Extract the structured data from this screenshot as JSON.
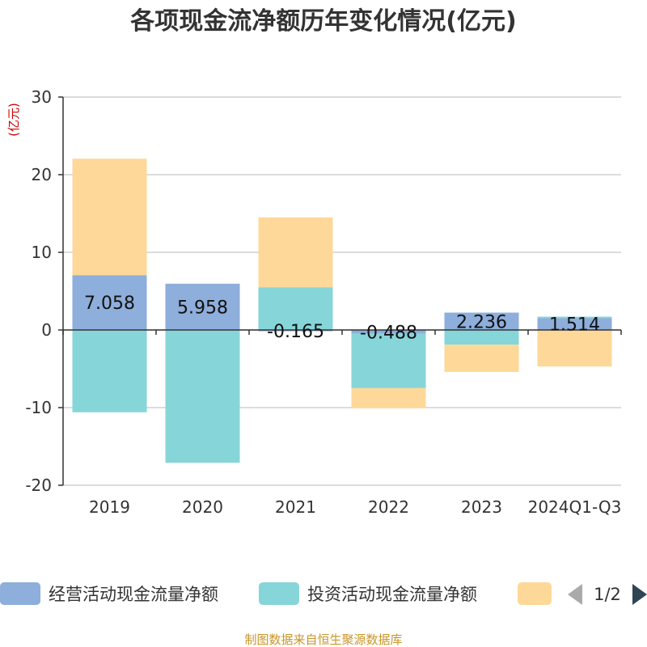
{
  "chart_data": {
    "type": "bar",
    "stacked": true,
    "title": "各项现金流净额历年变化情况(亿元)",
    "unit_label": "(亿元)",
    "categories": [
      "2019",
      "2020",
      "2021",
      "2022",
      "2023",
      "2024Q1-Q3"
    ],
    "ylim": [
      -20,
      30
    ],
    "yticks": [
      30,
      20,
      10,
      0,
      -10,
      -20
    ],
    "grid": true,
    "legend_position": "bottom",
    "series": [
      {
        "name": "经营活动现金流量净额",
        "color": "#8eaedb",
        "values": [
          7.058,
          5.958,
          -0.165,
          -0.488,
          2.236,
          1.514
        ],
        "data_labels": [
          "7.058",
          "5.958",
          "-0.165",
          "-0.488",
          "2.236",
          "1.514"
        ]
      },
      {
        "name": "投资活动现金流量净额",
        "color": "#86d5d9",
        "values": [
          -10.6,
          -17.1,
          5.5,
          -7.0,
          -1.9,
          0.2
        ]
      },
      {
        "name": "",
        "color": "#fdd898",
        "values": [
          15.0,
          0.0,
          9.0,
          -2.6,
          -3.5,
          -4.7
        ]
      }
    ]
  },
  "legend": {
    "page_indicator": "1/2"
  },
  "footer": {
    "source": "制图数据来自恒生聚源数据库"
  }
}
